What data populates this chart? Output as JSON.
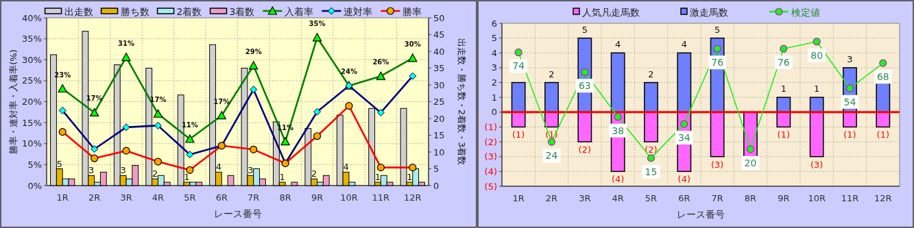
{
  "chart_data": [
    {
      "type": "bar",
      "categories": [
        "1R",
        "2R",
        "3R",
        "4R",
        "5R",
        "6R",
        "7R",
        "8R",
        "9R",
        "10R",
        "11R",
        "12R"
      ],
      "xlabel": "レース番号",
      "ylabel": "勝率・連対率・入着率(%)",
      "y2label": "出走数・勝ち数・2着数・3着数",
      "ylim": [
        0,
        40
      ],
      "yticks": [
        {
          "value": 0,
          "label": "0%"
        },
        {
          "value": 5,
          "label": "5%"
        },
        {
          "value": 10,
          "label": "10%"
        },
        {
          "value": 15,
          "label": "15%"
        },
        {
          "value": 20,
          "label": "20%"
        },
        {
          "value": 25,
          "label": "25%"
        },
        {
          "value": 30,
          "label": "30%"
        },
        {
          "value": 35,
          "label": "35%"
        },
        {
          "value": 40,
          "label": "40%"
        }
      ],
      "y2lim": [
        0,
        50
      ],
      "y2ticks": [
        0,
        5,
        10,
        15,
        20,
        25,
        30,
        35,
        40,
        45,
        50
      ],
      "grid": true,
      "legend": "top",
      "series": [
        {
          "name": "出走数",
          "color": "#d0d0d0",
          "axis": "y2",
          "values": [
            39,
            46,
            36,
            35,
            27,
            42,
            35,
            19,
            17,
            21,
            23,
            23
          ]
        },
        {
          "name": "勝ち数",
          "color": "#e6b400",
          "axis": "y2",
          "values": [
            5,
            3,
            3,
            2,
            1,
            4,
            3,
            1,
            2,
            4,
            1,
            1
          ],
          "value_labels": [
            "5",
            "3",
            "3",
            "2",
            "1",
            "4",
            "3",
            "1",
            "2",
            "4",
            "1",
            "1"
          ]
        },
        {
          "name": "2着数",
          "color": "#a8ecec",
          "axis": "y2",
          "values": [
            2,
            1,
            2,
            3,
            1,
            0,
            5,
            0,
            1,
            1,
            3,
            5
          ]
        },
        {
          "name": "3着数",
          "color": "#f09cc8",
          "axis": "y2",
          "values": [
            2,
            4,
            6,
            1,
            1,
            3,
            2,
            1,
            3,
            0,
            1,
            1
          ]
        },
        {
          "name": "入着率",
          "type": "line",
          "color": "#008000",
          "marker": "triangle",
          "values": [
            23.1,
            17.4,
            30.6,
            17.1,
            11.1,
            16.7,
            28.6,
            10.5,
            35.3,
            23.8,
            26.1,
            30.4
          ],
          "value_labels": [
            "23%",
            "17%",
            "31%",
            "17%",
            "11%",
            "17%",
            "29%",
            "11%",
            "35%",
            "24%",
            "26%",
            "30%"
          ]
        },
        {
          "name": "連対率",
          "type": "line",
          "color": "#000080",
          "marker": "diamond",
          "values": [
            17.9,
            8.7,
            13.9,
            14.3,
            7.4,
            9.5,
            22.9,
            5.3,
            17.6,
            23.8,
            17.4,
            26.1
          ]
        },
        {
          "name": "勝率",
          "type": "line",
          "color": "#ff0000",
          "marker": "circle",
          "values": [
            12.8,
            6.5,
            8.3,
            5.7,
            3.7,
            9.5,
            8.6,
            5.3,
            11.8,
            19.0,
            4.3,
            4.3
          ]
        }
      ]
    },
    {
      "type": "bar",
      "stacked": true,
      "categories": [
        "1R",
        "2R",
        "3R",
        "4R",
        "5R",
        "6R",
        "7R",
        "8R",
        "9R",
        "10R",
        "11R",
        "12R"
      ],
      "xlabel": "レース番号",
      "ylim": [
        -5,
        6
      ],
      "yticks": [
        {
          "value": -5,
          "label": "(5)"
        },
        {
          "value": -4,
          "label": "(4)"
        },
        {
          "value": -3,
          "label": "(3)"
        },
        {
          "value": -2,
          "label": "(2)"
        },
        {
          "value": -1,
          "label": "(1)"
        },
        0,
        1,
        2,
        3,
        4,
        5,
        6
      ],
      "y2lim": [
        -0.7,
        90.2
      ],
      "grid": true,
      "legend": "top",
      "ref_lines": [
        {
          "axis": "y",
          "value": 0,
          "color": "#ff0000"
        }
      ],
      "series": [
        {
          "name": "人気凡走馬数",
          "color": "#ff66ff",
          "values": [
            -1,
            -1,
            -2,
            -4,
            -2,
            -4,
            -3,
            -3,
            -1,
            -3,
            -1,
            -1
          ],
          "value_labels": [
            "(1)",
            "(1)",
            "(2)",
            "(4)",
            "(2)",
            "(4)",
            "(3)",
            null,
            "(1)",
            "(3)",
            "(1)",
            "(1)"
          ]
        },
        {
          "name": "激走馬数",
          "color": "#6f80ff",
          "values": [
            2,
            2,
            5,
            4,
            2,
            4,
            5,
            0,
            1,
            1,
            3,
            2
          ],
          "value_labels": [
            null,
            "2",
            "5",
            "4",
            "2",
            "4",
            "5",
            null,
            "1",
            "1",
            "3",
            null
          ]
        },
        {
          "name": "検定値",
          "type": "line",
          "color": "#22ee22",
          "marker": "circle",
          "axis": "y2",
          "values": [
            74,
            24,
            63,
            38,
            15,
            34,
            76,
            20,
            76,
            80,
            54,
            68
          ],
          "value_labels": [
            "74",
            "24",
            "63",
            "38",
            "15",
            "34",
            "76",
            "20",
            "76",
            "80",
            "54",
            "68"
          ]
        }
      ]
    }
  ]
}
